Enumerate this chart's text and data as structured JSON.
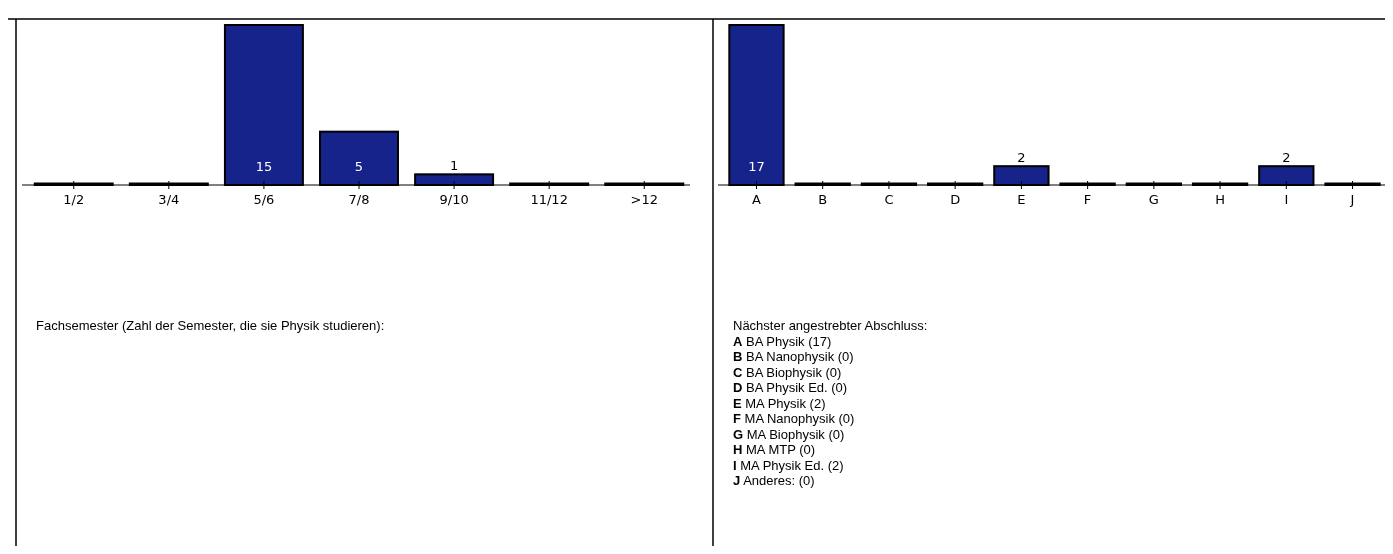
{
  "chart_data": [
    {
      "type": "bar",
      "categories": [
        "1/2",
        "3/4",
        "5/6",
        "7/8",
        "9/10",
        "11/12",
        ">12"
      ],
      "values": [
        0,
        0,
        15,
        5,
        1,
        0,
        0
      ],
      "value_labels": [
        null,
        null,
        "15",
        "5",
        "1",
        null,
        null
      ],
      "color": "#16238a",
      "annotations": [
        "Fachsemester (Zahl der Semester, die sie Physik studieren):"
      ]
    },
    {
      "type": "bar",
      "categories": [
        "A",
        "B",
        "C",
        "D",
        "E",
        "F",
        "G",
        "H",
        "I",
        "J"
      ],
      "values": [
        17,
        0,
        0,
        0,
        2,
        0,
        0,
        0,
        2,
        0
      ],
      "value_labels": [
        "17",
        null,
        null,
        null,
        "2",
        null,
        null,
        null,
        "2",
        null
      ],
      "color": "#16238a",
      "annotations": [
        "Nächster angestrebter Abschluss:",
        "A BA Physik (17)",
        "B BA Nanophysik (0)",
        "C BA Biophysik (0)",
        "D BA Physik Ed. (0)",
        "E MA Physik (2)",
        "F MA Nanophysik (0)",
        "G MA Biophysik (0)",
        "H MA MTP (0)",
        "I MA Physik Ed. (2)",
        "J Anderes: (0)"
      ]
    }
  ]
}
